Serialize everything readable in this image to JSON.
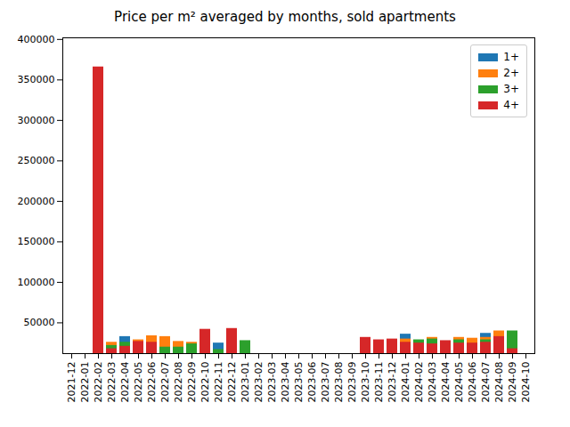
{
  "chart_data": {
    "type": "bar",
    "title": "Price per m² averaged by months, sold apartments",
    "stacked": false,
    "legend": "upper right",
    "categories": [
      "2021-12",
      "2022-01",
      "2022-02",
      "2022-03",
      "2022-04",
      "2022-05",
      "2022-06",
      "2022-07",
      "2022-08",
      "2022-09",
      "2022-10",
      "2022-11",
      "2022-12",
      "2023-01",
      "2023-02",
      "2023-03",
      "2023-04",
      "2023-05",
      "2023-06",
      "2023-07",
      "2023-08",
      "2023-09",
      "2023-10",
      "2023-11",
      "2023-12",
      "2024-01",
      "2024-02",
      "2024-03",
      "2024-04",
      "2024-05",
      "2024-06",
      "2024-07",
      "2024-08",
      "2024-09",
      "2024-10"
    ],
    "series": [
      {
        "name": "1+",
        "color": "#1f77b4",
        "values": [
          null,
          null,
          null,
          24000,
          33000,
          null,
          null,
          null,
          null,
          null,
          null,
          25000,
          null,
          null,
          null,
          null,
          null,
          null,
          null,
          null,
          null,
          null,
          null,
          null,
          null,
          36000,
          null,
          null,
          null,
          null,
          null,
          37000,
          null,
          null,
          null
        ]
      },
      {
        "name": "2+",
        "color": "#ff7f0e",
        "values": [
          null,
          null,
          null,
          26000,
          null,
          29000,
          34000,
          33000,
          27000,
          26000,
          null,
          null,
          null,
          null,
          null,
          null,
          null,
          null,
          null,
          null,
          null,
          null,
          null,
          null,
          null,
          30000,
          null,
          32000,
          null,
          32000,
          31000,
          32000,
          40000,
          null,
          null
        ]
      },
      {
        "name": "3+",
        "color": "#2ca02c",
        "values": [
          null,
          null,
          null,
          22000,
          26000,
          null,
          null,
          20000,
          20000,
          24000,
          null,
          17000,
          null,
          28000,
          null,
          null,
          null,
          null,
          null,
          null,
          null,
          null,
          null,
          null,
          null,
          null,
          29000,
          30000,
          null,
          29000,
          null,
          29000,
          null,
          40000,
          null
        ]
      },
      {
        "name": "4+",
        "color": "#d62728",
        "values": [
          null,
          null,
          366000,
          18000,
          21000,
          27000,
          26000,
          null,
          null,
          null,
          42000,
          null,
          43000,
          null,
          null,
          null,
          null,
          null,
          null,
          null,
          null,
          null,
          32000,
          29000,
          30000,
          26000,
          25000,
          24000,
          28000,
          25000,
          25000,
          26000,
          33000,
          18000,
          null
        ]
      }
    ],
    "ylim": [
      12000,
      402000
    ],
    "yticks": [
      50000,
      100000,
      150000,
      200000,
      250000,
      300000,
      350000,
      400000
    ]
  }
}
